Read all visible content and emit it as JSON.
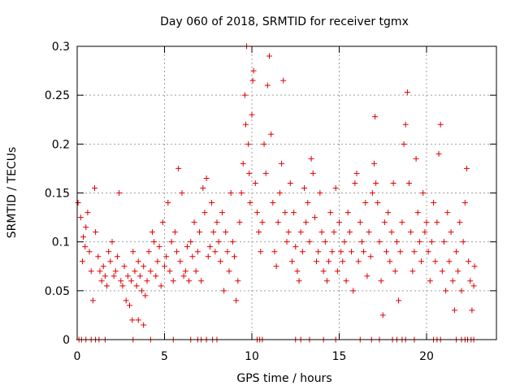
{
  "chart_data": {
    "type": "scatter",
    "title": "Day 060 of 2018, SRMTID for receiver tgmx",
    "xlabel": "GPS time / hours",
    "ylabel": "SRMTID / TECUs",
    "xlim": [
      0,
      24
    ],
    "ylim": [
      0,
      0.3
    ],
    "x_ticks": [
      "0",
      "5",
      "10",
      "15",
      "20"
    ],
    "x_tick_values": [
      0,
      5,
      10,
      15,
      20
    ],
    "y_ticks": [
      "0",
      "0.05",
      "0.1",
      "0.15",
      "0.2",
      "0.25",
      "0.3"
    ],
    "y_tick_values": [
      0,
      0.05,
      0.1,
      0.15,
      0.2,
      0.25,
      0.3
    ],
    "grid": true,
    "marker": "+",
    "series_color": "#e00000",
    "series": [
      {
        "name": "SRMTID",
        "points": [
          [
            0.05,
            0.14
          ],
          [
            0.2,
            0.125
          ],
          [
            0.3,
            0.08
          ],
          [
            0.35,
            0.105
          ],
          [
            0.45,
            0.095
          ],
          [
            0.5,
            0.115
          ],
          [
            0.6,
            0.13
          ],
          [
            0.7,
            0.09
          ],
          [
            0.8,
            0.07
          ],
          [
            0.9,
            0.04
          ],
          [
            1.0,
            0.155
          ],
          [
            1.05,
            0.11
          ],
          [
            1.2,
            0.085
          ],
          [
            1.3,
            0.07
          ],
          [
            1.4,
            0.06
          ],
          [
            1.5,
            0.075
          ],
          [
            1.6,
            0.065
          ],
          [
            1.7,
            0.055
          ],
          [
            1.8,
            0.09
          ],
          [
            1.9,
            0.08
          ],
          [
            2.0,
            0.1
          ],
          [
            2.1,
            0.065
          ],
          [
            2.2,
            0.07
          ],
          [
            2.3,
            0.085
          ],
          [
            2.4,
            0.15
          ],
          [
            2.5,
            0.06
          ],
          [
            2.6,
            0.055
          ],
          [
            2.7,
            0.075
          ],
          [
            2.8,
            0.04
          ],
          [
            2.9,
            0.065
          ],
          [
            3.0,
            0.035
          ],
          [
            3.1,
            0.06
          ],
          [
            3.2,
            0.09
          ],
          [
            3.3,
            0.07
          ],
          [
            3.4,
            0.055
          ],
          [
            3.5,
            0.08
          ],
          [
            3.6,
            0.065
          ],
          [
            3.7,
            0.05
          ],
          [
            3.8,
            0.075
          ],
          [
            3.9,
            0.045
          ],
          [
            3.15,
            0.02
          ],
          [
            3.5,
            0.02
          ],
          [
            3.8,
            0.015
          ],
          [
            4.0,
            0.06
          ],
          [
            4.1,
            0.09
          ],
          [
            4.2,
            0.07
          ],
          [
            4.3,
            0.11
          ],
          [
            4.4,
            0.1
          ],
          [
            4.5,
            0.065
          ],
          [
            4.6,
            0.08
          ],
          [
            4.7,
            0.095
          ],
          [
            4.8,
            0.055
          ],
          [
            4.9,
            0.12
          ],
          [
            5.0,
            0.075
          ],
          [
            5.1,
            0.085
          ],
          [
            5.2,
            0.14
          ],
          [
            5.3,
            0.07
          ],
          [
            5.4,
            0.1
          ],
          [
            5.5,
            0.06
          ],
          [
            5.6,
            0.11
          ],
          [
            5.7,
            0.09
          ],
          [
            5.8,
            0.175
          ],
          [
            5.9,
            0.08
          ],
          [
            6.0,
            0.15
          ],
          [
            6.1,
            0.065
          ],
          [
            6.2,
            0.07
          ],
          [
            6.3,
            0.095
          ],
          [
            6.4,
            0.06
          ],
          [
            6.5,
            0.1
          ],
          [
            6.6,
            0.085
          ],
          [
            6.7,
            0.12
          ],
          [
            6.8,
            0.07
          ],
          [
            6.9,
            0.09
          ],
          [
            7.0,
            0.11
          ],
          [
            7.1,
            0.06
          ],
          [
            7.2,
            0.155
          ],
          [
            7.3,
            0.13
          ],
          [
            7.4,
            0.165
          ],
          [
            7.5,
            0.085
          ],
          [
            7.6,
            0.095
          ],
          [
            7.7,
            0.14
          ],
          [
            7.8,
            0.11
          ],
          [
            7.9,
            0.09
          ],
          [
            8.0,
            0.12
          ],
          [
            8.1,
            0.1
          ],
          [
            8.2,
            0.08
          ],
          [
            8.3,
            0.13
          ],
          [
            8.4,
            0.05
          ],
          [
            8.5,
            0.11
          ],
          [
            8.6,
            0.09
          ],
          [
            8.7,
            0.07
          ],
          [
            8.8,
            0.15
          ],
          [
            8.9,
            0.1
          ],
          [
            9.0,
            0.085
          ],
          [
            9.1,
            0.04
          ],
          [
            9.2,
            0.06
          ],
          [
            9.3,
            0.12
          ],
          [
            9.4,
            0.15
          ],
          [
            9.5,
            0.18
          ],
          [
            9.6,
            0.25
          ],
          [
            9.65,
            0.22
          ],
          [
            9.7,
            0.3
          ],
          [
            9.8,
            0.2
          ],
          [
            9.85,
            0.17
          ],
          [
            9.9,
            0.14
          ],
          [
            10.0,
            0.23
          ],
          [
            10.05,
            0.265
          ],
          [
            10.1,
            0.275
          ],
          [
            10.2,
            0.16
          ],
          [
            10.3,
            0.13
          ],
          [
            10.4,
            0.11
          ],
          [
            10.5,
            0.09
          ],
          [
            10.6,
            0.12
          ],
          [
            10.7,
            0.2
          ],
          [
            10.8,
            0.17
          ],
          [
            10.9,
            0.26
          ],
          [
            11.0,
            0.29
          ],
          [
            11.1,
            0.21
          ],
          [
            11.2,
            0.14
          ],
          [
            11.3,
            0.09
          ],
          [
            11.4,
            0.075
          ],
          [
            11.5,
            0.12
          ],
          [
            11.6,
            0.15
          ],
          [
            11.7,
            0.18
          ],
          [
            11.8,
            0.265
          ],
          [
            11.9,
            0.13
          ],
          [
            12.0,
            0.1
          ],
          [
            12.1,
            0.11
          ],
          [
            12.2,
            0.16
          ],
          [
            12.3,
            0.08
          ],
          [
            12.4,
            0.13
          ],
          [
            12.5,
            0.095
          ],
          [
            12.6,
            0.07
          ],
          [
            12.7,
            0.06
          ],
          [
            12.8,
            0.11
          ],
          [
            12.9,
            0.09
          ],
          [
            13.0,
            0.155
          ],
          [
            13.1,
            0.12
          ],
          [
            13.2,
            0.14
          ],
          [
            13.3,
            0.1
          ],
          [
            13.4,
            0.185
          ],
          [
            13.5,
            0.17
          ],
          [
            13.6,
            0.125
          ],
          [
            13.7,
            0.08
          ],
          [
            13.8,
            0.09
          ],
          [
            13.9,
            0.15
          ],
          [
            14.0,
            0.11
          ],
          [
            14.1,
            0.07
          ],
          [
            14.2,
            0.1
          ],
          [
            14.3,
            0.06
          ],
          [
            14.4,
            0.08
          ],
          [
            14.5,
            0.13
          ],
          [
            14.6,
            0.09
          ],
          [
            14.7,
            0.11
          ],
          [
            14.8,
            0.155
          ],
          [
            14.9,
            0.07
          ],
          [
            15.0,
            0.12
          ],
          [
            15.1,
            0.09
          ],
          [
            15.2,
            0.08
          ],
          [
            15.3,
            0.1
          ],
          [
            15.4,
            0.06
          ],
          [
            15.5,
            0.13
          ],
          [
            15.6,
            0.11
          ],
          [
            15.7,
            0.09
          ],
          [
            15.8,
            0.05
          ],
          [
            15.9,
            0.16
          ],
          [
            16.0,
            0.17
          ],
          [
            16.1,
            0.08
          ],
          [
            16.2,
            0.12
          ],
          [
            16.3,
            0.1
          ],
          [
            16.4,
            0.09
          ],
          [
            16.5,
            0.14
          ],
          [
            16.6,
            0.065
          ],
          [
            16.7,
            0.11
          ],
          [
            16.8,
            0.085
          ],
          [
            16.9,
            0.15
          ],
          [
            17.0,
            0.18
          ],
          [
            17.05,
            0.228
          ],
          [
            17.1,
            0.16
          ],
          [
            17.2,
            0.14
          ],
          [
            17.3,
            0.1
          ],
          [
            17.4,
            0.06
          ],
          [
            17.5,
            0.025
          ],
          [
            17.6,
            0.12
          ],
          [
            17.7,
            0.09
          ],
          [
            17.8,
            0.13
          ],
          [
            17.9,
            0.08
          ],
          [
            18.0,
            0.11
          ],
          [
            18.1,
            0.16
          ],
          [
            18.2,
            0.07
          ],
          [
            18.3,
            0.1
          ],
          [
            18.4,
            0.04
          ],
          [
            18.5,
            0.09
          ],
          [
            18.6,
            0.12
          ],
          [
            18.7,
            0.2
          ],
          [
            18.8,
            0.22
          ],
          [
            18.9,
            0.253
          ],
          [
            19.0,
            0.16
          ],
          [
            19.1,
            0.11
          ],
          [
            19.2,
            0.07
          ],
          [
            19.3,
            0.09
          ],
          [
            19.4,
            0.185
          ],
          [
            19.5,
            0.13
          ],
          [
            19.6,
            0.1
          ],
          [
            19.7,
            0.08
          ],
          [
            19.8,
            0.15
          ],
          [
            19.9,
            0.11
          ],
          [
            20.0,
            0.12
          ],
          [
            20.1,
            0.09
          ],
          [
            20.2,
            0.06
          ],
          [
            20.3,
            0.1
          ],
          [
            20.4,
            0.14
          ],
          [
            20.5,
            0.08
          ],
          [
            20.6,
            0.12
          ],
          [
            20.7,
            0.19
          ],
          [
            20.8,
            0.22
          ],
          [
            20.9,
            0.07
          ],
          [
            21.0,
            0.1
          ],
          [
            21.1,
            0.05
          ],
          [
            21.2,
            0.13
          ],
          [
            21.3,
            0.08
          ],
          [
            21.4,
            0.11
          ],
          [
            21.5,
            0.06
          ],
          [
            21.6,
            0.03
          ],
          [
            21.7,
            0.09
          ],
          [
            21.8,
            0.07
          ],
          [
            21.9,
            0.12
          ],
          [
            22.0,
            0.05
          ],
          [
            22.1,
            0.1
          ],
          [
            22.2,
            0.14
          ],
          [
            22.3,
            0.175
          ],
          [
            22.4,
            0.08
          ],
          [
            22.5,
            0.06
          ],
          [
            22.6,
            0.03
          ],
          [
            22.7,
            0.055
          ],
          [
            22.75,
            0.075
          ]
        ]
      }
    ],
    "zero_points_x": [
      0.1,
      0.25,
      0.5,
      0.8,
      1.05,
      1.25,
      1.6,
      3.2,
      4.2,
      5.5,
      6.5,
      6.9,
      7.1,
      7.4,
      7.75,
      8.0,
      10.3,
      10.45,
      10.6,
      12.5,
      12.8,
      13.3,
      14.1,
      14.8,
      16.2,
      16.85,
      17.3,
      18.05,
      18.3,
      18.6,
      18.8,
      19.3,
      20.4,
      20.6,
      20.8,
      21.7,
      22.0,
      22.2,
      22.35,
      22.55,
      22.7
    ]
  }
}
